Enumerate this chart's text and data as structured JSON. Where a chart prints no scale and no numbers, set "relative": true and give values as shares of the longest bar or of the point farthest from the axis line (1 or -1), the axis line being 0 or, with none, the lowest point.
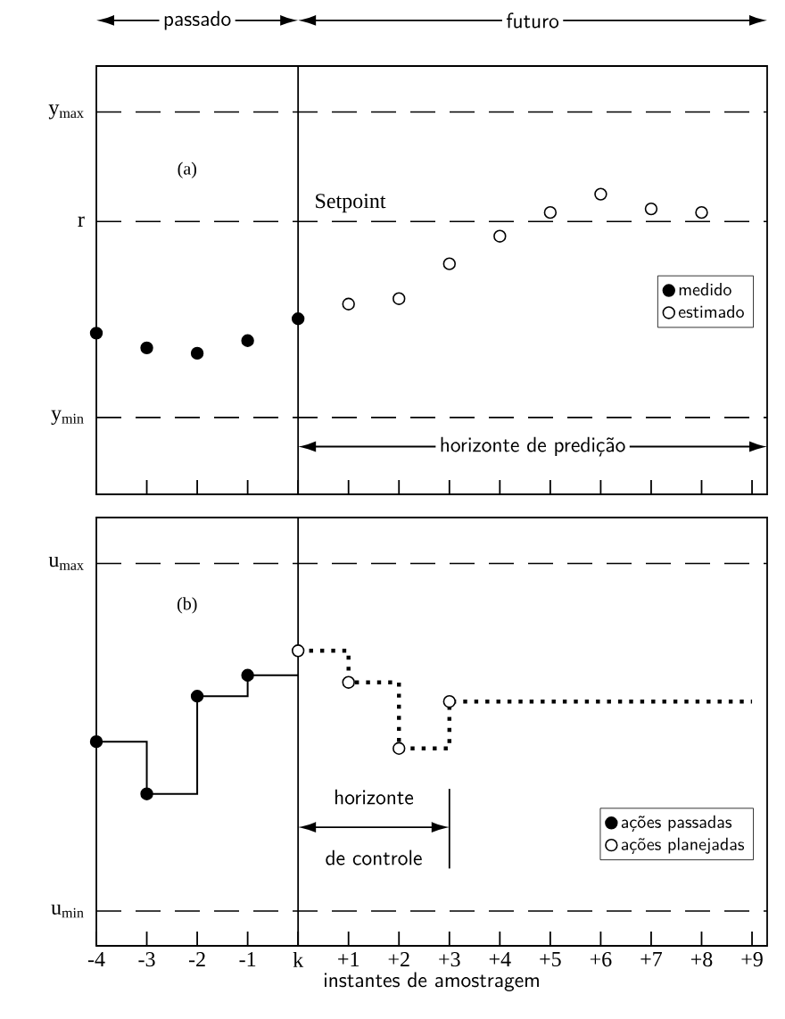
{
  "chart_data": [
    {
      "type": "scatter",
      "relative": true,
      "categories": [
        "-4",
        "-3",
        "-2",
        "-1",
        "k",
        "+1",
        "+2",
        "+3",
        "+4",
        "+5",
        "+6",
        "+7",
        "+8",
        "+9"
      ],
      "tick_labels": false,
      "legend": "right",
      "series": [
        {
          "name": "medido",
          "color": "#000000",
          "marker": "circle",
          "values": [
            0.537,
            0.488,
            0.47,
            0.512,
            0.585,
            null,
            null,
            null,
            null,
            null,
            null,
            null,
            null,
            null
          ]
        },
        {
          "name": "estimado",
          "color": "#ffffff",
          "marker": "circle",
          "values": [
            null,
            null,
            null,
            null,
            null,
            0.634,
            0.652,
            0.768,
            0.86,
            0.939,
            1,
            0.951,
            0.939,
            null
          ]
        }
      ],
      "ref_lines": [
        {
          "axis": "y",
          "value": 1.274,
          "label": "y$_{max}$",
          "line_style": "dashed"
        },
        {
          "axis": "y",
          "value": 0.909,
          "label": "r",
          "line_style": "dashed"
        },
        {
          "axis": "y",
          "value": 0.256,
          "label": "y$_{min}$",
          "line_style": "dashed"
        },
        {
          "axis": "x",
          "value": "k",
          "line_style": "solid"
        }
      ],
      "annotations": [
        "passado",
        "futuro",
        "(a)",
        "Setpoint",
        "horizonte de predição"
      ]
    },
    {
      "type": "scatter",
      "relative": true,
      "categories": [
        "-4",
        "-3",
        "-2",
        "-1",
        "k",
        "+1",
        "+2",
        "+3",
        "+4",
        "+5",
        "+6",
        "+7",
        "+8",
        "+9"
      ],
      "tick_labels": "x",
      "legend": "bottom right",
      "xlabel": "instantes de amostragem",
      "series": [
        {
          "type": "step",
          "color": "#000000",
          "line_style": "solid",
          "values": [
            0.692,
            0.515,
            0.846,
            0.917,
            0.917,
            null,
            null,
            null,
            null,
            null,
            null,
            null,
            null,
            null
          ]
        },
        {
          "type": "step",
          "color": "#000000",
          "line_style": "dotted",
          "values": [
            null,
            null,
            null,
            null,
            1,
            0.893,
            0.669,
            0.828,
            0.828,
            0.828,
            0.828,
            0.828,
            0.828,
            0.828
          ]
        },
        {
          "name": "ações passadas",
          "color": "#000000",
          "marker": "circle",
          "values": [
            0.692,
            0.515,
            0.846,
            0.917,
            null,
            null,
            null,
            null,
            null,
            null,
            null,
            null,
            null,
            null
          ]
        },
        {
          "name": "ações planejadas",
          "color": "#ffffff",
          "marker": "circle",
          "values": [
            null,
            null,
            null,
            null,
            1,
            0.893,
            0.669,
            0.828,
            null,
            null,
            null,
            null,
            null,
            null
          ]
        }
      ],
      "ref_lines": [
        {
          "axis": "y",
          "value": 1.296,
          "label": "u$_{max}$",
          "line_style": "dashed"
        },
        {
          "axis": "y",
          "value": 0.118,
          "label": "u$_{min}$",
          "line_style": "dashed"
        },
        {
          "axis": "x",
          "value": "k",
          "line_style": "solid"
        }
      ],
      "annotations": [
        "(b)",
        "horizonte de controle"
      ]
    }
  ]
}
